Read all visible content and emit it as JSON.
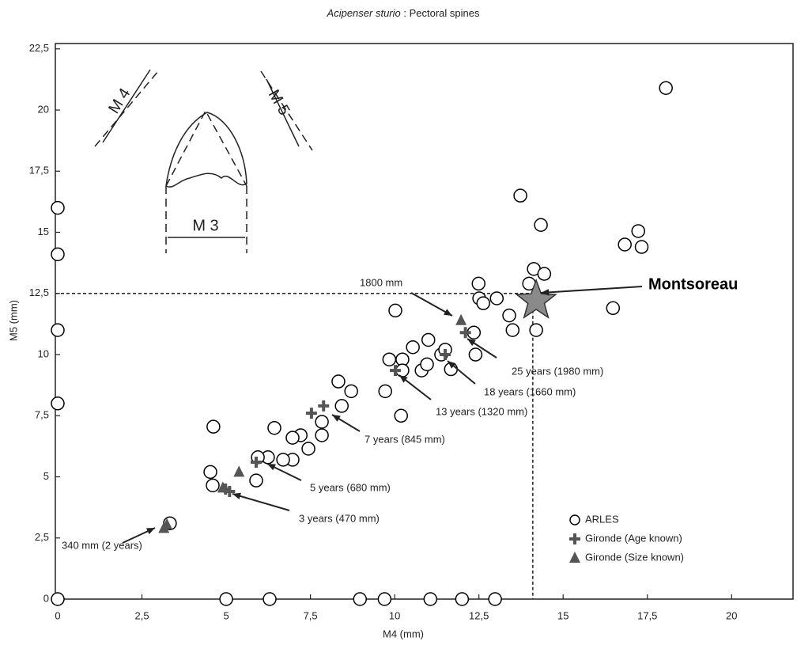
{
  "chart_data": {
    "type": "scatter",
    "title": [
      "Acipenser sturio",
      " : Pectoral spines"
    ],
    "x_label": "M4 (mm)",
    "y_label": "M5 (mm)",
    "xlim": [
      0,
      21.8
    ],
    "ylim": [
      0,
      22.7
    ],
    "xticks": [
      0,
      {
        "value": 2.5,
        "label": "2,5"
      },
      5,
      {
        "value": 7.5,
        "label": "7,5"
      },
      10,
      {
        "value": 12.5,
        "label": "12,5"
      },
      15,
      {
        "value": 17.5,
        "label": "17,5"
      },
      20
    ],
    "yticks": [
      0,
      {
        "value": 2.5,
        "label": "2,5"
      },
      5,
      {
        "value": 7.5,
        "label": "7,5"
      },
      10,
      {
        "value": 12.5,
        "label": "12,5"
      },
      15,
      {
        "value": 17.5,
        "label": "17,5"
      },
      20,
      {
        "value": 22.5,
        "label": "22,5"
      }
    ],
    "grid": false,
    "legend": "lower right",
    "series": [
      {
        "name": "ARLES",
        "marker": "circle",
        "color": "#000000",
        "x": [
          0,
          0,
          0,
          0,
          0,
          18.05,
          13.73,
          14.34,
          17.23,
          16.83,
          17.33,
          14.13,
          14.44,
          12.49,
          13.99,
          12.51,
          12.63,
          13.03,
          16.48,
          13.4,
          13.5,
          14.2,
          10.02,
          12.35,
          9.84,
          10.23,
          10.54,
          11.0,
          10.23,
          10.8,
          10.96,
          11.38,
          11.5,
          9.72,
          10.19,
          11.67,
          8.71,
          8.33,
          8.43,
          7.84,
          7.84,
          7.44,
          7.21,
          6.97,
          6.97,
          6.43,
          6.69,
          6.24,
          5.94,
          5.89,
          4.62,
          4.53,
          4.6,
          3.33,
          5.0,
          6.29,
          8.97,
          9.7,
          11.06,
          12.0,
          12.98,
          12.4
        ],
        "y": [
          16.0,
          14.1,
          11.0,
          8.0,
          0,
          20.9,
          16.5,
          15.3,
          15.05,
          14.5,
          14.4,
          13.5,
          13.3,
          12.9,
          12.9,
          12.3,
          12.1,
          12.3,
          11.9,
          11.6,
          11.0,
          11.0,
          11.8,
          10.9,
          9.8,
          9.8,
          10.3,
          10.6,
          9.35,
          9.35,
          9.6,
          10.0,
          10.2,
          8.5,
          7.5,
          9.4,
          8.5,
          8.9,
          7.9,
          7.25,
          6.7,
          6.15,
          6.7,
          6.6,
          5.7,
          7.0,
          5.7,
          5.8,
          5.8,
          4.85,
          7.05,
          5.2,
          4.65,
          3.1,
          0,
          0,
          0,
          0,
          0,
          0,
          0,
          10.0
        ]
      },
      {
        "name": "Gironde (Age known)",
        "marker": "plus",
        "color": "#555555",
        "x": [
          12.1,
          11.5,
          10.02,
          7.89,
          7.53,
          5.89,
          4.98,
          5.1
        ],
        "y": [
          10.9,
          10.0,
          9.35,
          7.9,
          7.6,
          5.6,
          4.5,
          4.4
        ]
      },
      {
        "name": "Gironde (Size known)",
        "marker": "triangle",
        "color": "#555555",
        "x": [
          11.97,
          5.38,
          4.9,
          3.15,
          3.24
        ],
        "y": [
          11.4,
          5.2,
          4.55,
          2.9,
          3.05
        ]
      },
      {
        "name": "Montsoreau",
        "marker": "star",
        "color": "#8a8a8a",
        "x": [
          14.2
        ],
        "y": [
          12.2
        ]
      }
    ],
    "reference_lines": {
      "x": 14.1,
      "y": 12.5
    },
    "annotations": [
      "1800 mm",
      "25 years (1980 mm)",
      "18 years (1660 mm)",
      "13 years (1320 mm)",
      "7 years (845 mm)",
      "5 years (680 mm)",
      "3 years (470 mm)",
      "340  mm (2 years)"
    ],
    "inset_labels": [
      "M 4",
      "M 5",
      "M 3"
    ]
  }
}
